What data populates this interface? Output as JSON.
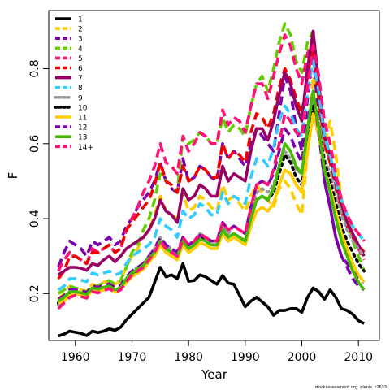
{
  "chart_data": {
    "type": "line",
    "xlabel": "Year",
    "ylabel": "F",
    "xlim": [
      1955.3,
      2013.7
    ],
    "ylim": [
      0.075,
      0.955
    ],
    "xticks": [
      "1960",
      "1970",
      "1980",
      "1990",
      "2000",
      "2010"
    ],
    "yticks": [
      "0.2",
      "0.4",
      "0.6",
      "0.8"
    ],
    "legend_position": "top-left",
    "credit": "stockassessment.org, plenis, r2633",
    "x": [
      1957,
      1958,
      1959,
      1960,
      1961,
      1962,
      1963,
      1964,
      1965,
      1966,
      1967,
      1968,
      1969,
      1970,
      1971,
      1972,
      1973,
      1974,
      1975,
      1976,
      1977,
      1978,
      1979,
      1980,
      1981,
      1982,
      1983,
      1984,
      1985,
      1986,
      1987,
      1988,
      1989,
      1990,
      1991,
      1992,
      1993,
      1994,
      1995,
      1996,
      1997,
      1998,
      1999,
      2000,
      2001,
      2002,
      2003,
      2004,
      2005,
      2006,
      2007,
      2008,
      2009,
      2010,
      2011
    ],
    "series": [
      {
        "name": "1",
        "color": "#000000",
        "dash": "solid",
        "values": [
          0.087,
          0.092,
          0.1,
          0.097,
          0.094,
          0.088,
          0.1,
          0.096,
          0.1,
          0.106,
          0.102,
          0.11,
          0.13,
          0.145,
          0.16,
          0.175,
          0.19,
          0.23,
          0.27,
          0.245,
          0.25,
          0.24,
          0.28,
          0.233,
          0.235,
          0.25,
          0.245,
          0.235,
          0.225,
          0.248,
          0.228,
          0.225,
          0.195,
          0.165,
          0.18,
          0.19,
          0.178,
          0.165,
          0.142,
          0.155,
          0.155,
          0.16,
          0.16,
          0.15,
          0.19,
          0.215,
          0.205,
          0.185,
          0.21,
          0.19,
          0.16,
          0.155,
          0.145,
          0.128,
          0.12
        ]
      },
      {
        "name": "2",
        "color": "#FFCC00",
        "dash": "dash",
        "values": [
          0.185,
          0.2,
          0.22,
          0.215,
          0.21,
          0.205,
          0.225,
          0.22,
          0.23,
          0.235,
          0.225,
          0.235,
          0.27,
          0.3,
          0.32,
          0.35,
          0.37,
          0.41,
          0.46,
          0.42,
          0.41,
          0.4,
          0.47,
          0.42,
          0.43,
          0.46,
          0.45,
          0.43,
          0.42,
          0.49,
          0.45,
          0.46,
          0.44,
          0.42,
          0.46,
          0.49,
          0.47,
          0.45,
          0.43,
          0.48,
          0.5,
          0.48,
          0.44,
          0.41,
          0.58,
          0.78,
          0.72,
          0.6,
          0.66,
          0.57,
          0.45,
          0.4,
          0.36,
          0.33,
          0.3
        ]
      },
      {
        "name": "3",
        "color": "#7B00AA",
        "dash": "dash",
        "values": [
          0.27,
          0.31,
          0.34,
          0.33,
          0.32,
          0.3,
          0.34,
          0.33,
          0.34,
          0.35,
          0.33,
          0.34,
          0.38,
          0.4,
          0.43,
          0.45,
          0.47,
          0.5,
          0.55,
          0.5,
          0.48,
          0.47,
          0.56,
          0.5,
          0.51,
          0.54,
          0.53,
          0.51,
          0.5,
          0.6,
          0.56,
          0.58,
          0.56,
          0.54,
          0.6,
          0.64,
          0.62,
          0.6,
          0.58,
          0.68,
          0.78,
          0.74,
          0.64,
          0.58,
          0.72,
          0.84,
          0.66,
          0.5,
          0.43,
          0.35,
          0.3,
          0.28,
          0.26,
          0.24,
          0.23
        ]
      },
      {
        "name": "4",
        "color": "#66CC00",
        "dash": "dash",
        "values": [
          0.2,
          0.21,
          0.22,
          0.215,
          0.21,
          0.205,
          0.22,
          0.22,
          0.23,
          0.235,
          0.225,
          0.235,
          0.27,
          0.31,
          0.33,
          0.37,
          0.4,
          0.45,
          0.52,
          0.5,
          0.49,
          0.47,
          0.62,
          0.6,
          0.61,
          0.63,
          0.62,
          0.6,
          0.6,
          0.67,
          0.63,
          0.65,
          0.64,
          0.62,
          0.7,
          0.76,
          0.78,
          0.74,
          0.8,
          0.87,
          0.92,
          0.89,
          0.82,
          0.79,
          0.87,
          0.9,
          0.74,
          0.6,
          0.56,
          0.5,
          0.43,
          0.38,
          0.34,
          0.3,
          0.26
        ]
      },
      {
        "name": "5",
        "color": "#FF1177",
        "dash": "dash",
        "values": [
          0.26,
          0.29,
          0.31,
          0.3,
          0.29,
          0.28,
          0.32,
          0.31,
          0.32,
          0.33,
          0.31,
          0.32,
          0.37,
          0.4,
          0.43,
          0.47,
          0.5,
          0.54,
          0.6,
          0.55,
          0.54,
          0.52,
          0.62,
          0.58,
          0.6,
          0.63,
          0.62,
          0.6,
          0.6,
          0.69,
          0.65,
          0.67,
          0.66,
          0.63,
          0.7,
          0.76,
          0.76,
          0.72,
          0.78,
          0.84,
          0.89,
          0.86,
          0.8,
          0.76,
          0.84,
          0.88,
          0.73,
          0.6,
          0.55,
          0.49,
          0.43,
          0.38,
          0.35,
          0.32,
          0.29
        ]
      },
      {
        "name": "6",
        "color": "#EE0000",
        "dash": "dash",
        "values": [
          0.24,
          0.26,
          0.3,
          0.3,
          0.29,
          0.28,
          0.31,
          0.31,
          0.32,
          0.33,
          0.31,
          0.32,
          0.37,
          0.39,
          0.41,
          0.43,
          0.45,
          0.49,
          0.55,
          0.5,
          0.49,
          0.47,
          0.54,
          0.5,
          0.51,
          0.54,
          0.53,
          0.51,
          0.51,
          0.6,
          0.56,
          0.58,
          0.57,
          0.55,
          0.63,
          0.68,
          0.67,
          0.64,
          0.68,
          0.75,
          0.8,
          0.77,
          0.72,
          0.68,
          0.78,
          0.86,
          0.72,
          0.6,
          0.55,
          0.48,
          0.42,
          0.38,
          0.35,
          0.33,
          0.31
        ]
      },
      {
        "name": "7",
        "color": "#990066",
        "dash": "solid",
        "values": [
          0.25,
          0.26,
          0.27,
          0.27,
          0.268,
          0.262,
          0.28,
          0.275,
          0.29,
          0.3,
          0.285,
          0.3,
          0.32,
          0.33,
          0.34,
          0.35,
          0.37,
          0.4,
          0.45,
          0.42,
          0.41,
          0.39,
          0.48,
          0.45,
          0.46,
          0.49,
          0.48,
          0.46,
          0.46,
          0.54,
          0.5,
          0.52,
          0.51,
          0.5,
          0.58,
          0.64,
          0.64,
          0.61,
          0.66,
          0.73,
          0.79,
          0.76,
          0.7,
          0.66,
          0.8,
          0.9,
          0.76,
          0.62,
          0.57,
          0.5,
          0.44,
          0.39,
          0.36,
          0.33,
          0.3
        ]
      },
      {
        "name": "8",
        "color": "#33CCFF",
        "dash": "dash",
        "values": [
          0.21,
          0.22,
          0.24,
          0.24,
          0.236,
          0.232,
          0.255,
          0.25,
          0.255,
          0.26,
          0.25,
          0.255,
          0.28,
          0.3,
          0.31,
          0.32,
          0.33,
          0.35,
          0.4,
          0.38,
          0.37,
          0.35,
          0.42,
          0.4,
          0.41,
          0.44,
          0.43,
          0.41,
          0.41,
          0.47,
          0.44,
          0.46,
          0.45,
          0.44,
          0.51,
          0.56,
          0.56,
          0.54,
          0.59,
          0.66,
          0.7,
          0.68,
          0.64,
          0.62,
          0.74,
          0.82,
          0.74,
          0.62,
          0.57,
          0.5,
          0.45,
          0.41,
          0.38,
          0.36,
          0.34
        ]
      },
      {
        "name": "9",
        "color": "#999999",
        "dash": "dot",
        "values": [
          0.17,
          0.18,
          0.2,
          0.2,
          0.198,
          0.195,
          0.213,
          0.21,
          0.216,
          0.22,
          0.21,
          0.217,
          0.24,
          0.26,
          0.27,
          0.28,
          0.3,
          0.32,
          0.35,
          0.33,
          0.32,
          0.31,
          0.35,
          0.33,
          0.34,
          0.36,
          0.35,
          0.34,
          0.34,
          0.38,
          0.36,
          0.38,
          0.37,
          0.36,
          0.42,
          0.47,
          0.48,
          0.47,
          0.49,
          0.54,
          0.58,
          0.56,
          0.53,
          0.52,
          0.62,
          0.72,
          0.66,
          0.56,
          0.52,
          0.46,
          0.41,
          0.37,
          0.34,
          0.32,
          0.3
        ]
      },
      {
        "name": "10",
        "color": "#000000",
        "dash": "dot",
        "values": [
          0.175,
          0.185,
          0.2,
          0.2,
          0.197,
          0.193,
          0.21,
          0.207,
          0.213,
          0.217,
          0.207,
          0.213,
          0.235,
          0.25,
          0.26,
          0.27,
          0.29,
          0.31,
          0.34,
          0.32,
          0.31,
          0.3,
          0.34,
          0.32,
          0.33,
          0.35,
          0.34,
          0.33,
          0.33,
          0.37,
          0.35,
          0.36,
          0.35,
          0.34,
          0.4,
          0.45,
          0.46,
          0.45,
          0.47,
          0.52,
          0.57,
          0.55,
          0.51,
          0.49,
          0.6,
          0.7,
          0.64,
          0.55,
          0.5,
          0.44,
          0.38,
          0.34,
          0.31,
          0.28,
          0.26
        ]
      },
      {
        "name": "11",
        "color": "#FFCC00",
        "dash": "solid",
        "values": [
          0.175,
          0.18,
          0.195,
          0.2,
          0.197,
          0.192,
          0.208,
          0.205,
          0.21,
          0.215,
          0.205,
          0.21,
          0.23,
          0.245,
          0.255,
          0.265,
          0.285,
          0.3,
          0.33,
          0.31,
          0.3,
          0.29,
          0.33,
          0.31,
          0.32,
          0.335,
          0.33,
          0.32,
          0.32,
          0.36,
          0.34,
          0.35,
          0.34,
          0.33,
          0.38,
          0.42,
          0.43,
          0.42,
          0.44,
          0.49,
          0.53,
          0.52,
          0.49,
          0.47,
          0.58,
          0.68,
          0.62,
          0.53,
          0.48,
          0.42,
          0.36,
          0.32,
          0.28,
          0.25,
          0.23
        ]
      },
      {
        "name": "12",
        "color": "#7B00AA",
        "dash": "dash",
        "values": [
          0.185,
          0.195,
          0.21,
          0.21,
          0.207,
          0.203,
          0.22,
          0.217,
          0.222,
          0.226,
          0.216,
          0.222,
          0.245,
          0.26,
          0.27,
          0.28,
          0.3,
          0.32,
          0.35,
          0.33,
          0.32,
          0.31,
          0.35,
          0.33,
          0.34,
          0.355,
          0.35,
          0.34,
          0.34,
          0.39,
          0.37,
          0.38,
          0.37,
          0.36,
          0.43,
          0.49,
          0.5,
          0.49,
          0.52,
          0.58,
          0.64,
          0.62,
          0.58,
          0.55,
          0.66,
          0.74,
          0.63,
          0.5,
          0.43,
          0.35,
          0.3,
          0.27,
          0.24,
          0.22,
          0.21
        ]
      },
      {
        "name": "13",
        "color": "#44BB00",
        "dash": "solid",
        "values": [
          0.18,
          0.19,
          0.205,
          0.205,
          0.202,
          0.198,
          0.215,
          0.212,
          0.217,
          0.22,
          0.21,
          0.216,
          0.24,
          0.255,
          0.265,
          0.275,
          0.295,
          0.31,
          0.34,
          0.32,
          0.31,
          0.3,
          0.34,
          0.32,
          0.33,
          0.345,
          0.34,
          0.33,
          0.33,
          0.37,
          0.35,
          0.36,
          0.35,
          0.34,
          0.4,
          0.45,
          0.46,
          0.45,
          0.48,
          0.54,
          0.6,
          0.58,
          0.54,
          0.52,
          0.64,
          0.74,
          0.64,
          0.53,
          0.47,
          0.4,
          0.34,
          0.3,
          0.26,
          0.23,
          0.21
        ]
      },
      {
        "name": "14+",
        "color": "#FF1177",
        "dash": "dash",
        "values": [
          0.16,
          0.175,
          0.19,
          0.195,
          0.192,
          0.188,
          0.205,
          0.202,
          0.208,
          0.213,
          0.203,
          0.21,
          0.232,
          0.25,
          0.26,
          0.27,
          0.29,
          0.31,
          0.34,
          0.32,
          0.31,
          0.3,
          0.35,
          0.33,
          0.34,
          0.36,
          0.35,
          0.34,
          0.34,
          0.39,
          0.37,
          0.38,
          0.37,
          0.36,
          0.43,
          0.49,
          0.5,
          0.49,
          0.53,
          0.6,
          0.68,
          0.66,
          0.63,
          0.62,
          0.75,
          0.86,
          0.78,
          0.66,
          0.6,
          0.52,
          0.45,
          0.41,
          0.38,
          0.36,
          0.34
        ]
      }
    ]
  }
}
